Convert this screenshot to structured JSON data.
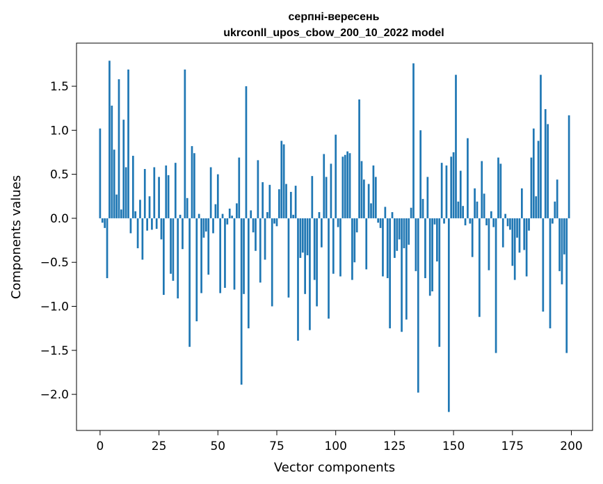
{
  "chart_data": {
    "type": "bar",
    "title_line1": "серпні-вересень",
    "title_line2": "ukrconll_upos_cbow_200_10_2022 model",
    "xlabel": "Vector components",
    "ylabel": "Components values",
    "xlim": [
      -10,
      209
    ],
    "ylim": [
      -2.41,
      1.99
    ],
    "x_ticks": [
      0,
      25,
      50,
      75,
      100,
      125,
      150,
      175,
      200
    ],
    "x_tick_labels": [
      "0",
      "25",
      "50",
      "75",
      "100",
      "125",
      "150",
      "175",
      "200"
    ],
    "y_ticks": [
      -2.0,
      -1.5,
      -1.0,
      -0.5,
      0.0,
      0.5,
      1.0,
      1.5
    ],
    "y_tick_labels": [
      "−2.0",
      "−1.5",
      "−1.0",
      "−0.5",
      "0.0",
      "0.5",
      "1.0",
      "1.5"
    ],
    "bar_color": "#1f77b4",
    "values": [
      1.02,
      -0.05,
      -0.11,
      -0.68,
      1.79,
      1.28,
      0.78,
      0.27,
      1.58,
      0.1,
      1.12,
      0.58,
      1.69,
      -0.17,
      0.71,
      0.08,
      -0.34,
      0.21,
      -0.47,
      0.56,
      -0.14,
      0.25,
      -0.13,
      0.58,
      -0.12,
      0.47,
      -0.24,
      -0.87,
      0.6,
      0.49,
      -0.63,
      -0.71,
      0.63,
      -0.91,
      0.04,
      -0.35,
      1.69,
      0.23,
      -1.46,
      0.82,
      0.74,
      -1.17,
      0.05,
      -0.85,
      -0.22,
      -0.15,
      -0.64,
      0.58,
      -0.17,
      0.16,
      0.5,
      -0.85,
      0.05,
      -0.79,
      -0.07,
      0.11,
      0.03,
      -0.81,
      0.17,
      0.69,
      -1.89,
      -0.86,
      1.5,
      -1.25,
      0.09,
      -0.16,
      -0.37,
      0.66,
      -0.73,
      0.41,
      -0.47,
      0.07,
      0.38,
      -1.0,
      -0.06,
      -0.09,
      0.33,
      0.88,
      0.84,
      0.39,
      -0.9,
      0.3,
      0.04,
      0.37,
      -1.39,
      -0.45,
      -0.39,
      -0.86,
      -0.42,
      -1.27,
      0.48,
      -0.7,
      -1.0,
      0.07,
      -0.33,
      0.73,
      0.47,
      -1.14,
      0.62,
      -0.63,
      0.95,
      -0.1,
      -0.66,
      0.7,
      0.72,
      0.76,
      0.74,
      -0.7,
      -0.5,
      -0.16,
      1.35,
      0.65,
      0.44,
      -0.58,
      0.39,
      0.17,
      0.6,
      0.47,
      -0.05,
      -0.11,
      -0.66,
      0.13,
      -0.68,
      -1.25,
      0.07,
      -0.45,
      -0.37,
      -0.24,
      -1.29,
      -0.34,
      -1.15,
      -0.3,
      0.12,
      1.76,
      -0.6,
      -1.98,
      1.0,
      0.22,
      -0.68,
      0.47,
      -0.88,
      -0.83,
      -0.07,
      -0.49,
      -1.46,
      0.63,
      -0.06,
      0.6,
      -2.2,
      0.7,
      0.75,
      1.63,
      0.19,
      0.54,
      0.14,
      -0.08,
      0.91,
      -0.06,
      -0.44,
      0.34,
      0.19,
      -1.12,
      0.65,
      0.28,
      -0.08,
      -0.59,
      0.08,
      -0.1,
      -1.53,
      0.69,
      0.62,
      -0.33,
      0.05,
      -0.09,
      -0.13,
      -0.54,
      -0.7,
      -0.22,
      -0.39,
      0.34,
      -0.36,
      -0.66,
      -0.14,
      0.69,
      1.02,
      0.25,
      0.88,
      1.63,
      -1.06,
      1.24,
      1.07,
      -1.25,
      -0.06,
      0.19,
      0.44,
      -0.6,
      -0.75,
      -0.41,
      -1.53,
      1.17
    ]
  }
}
